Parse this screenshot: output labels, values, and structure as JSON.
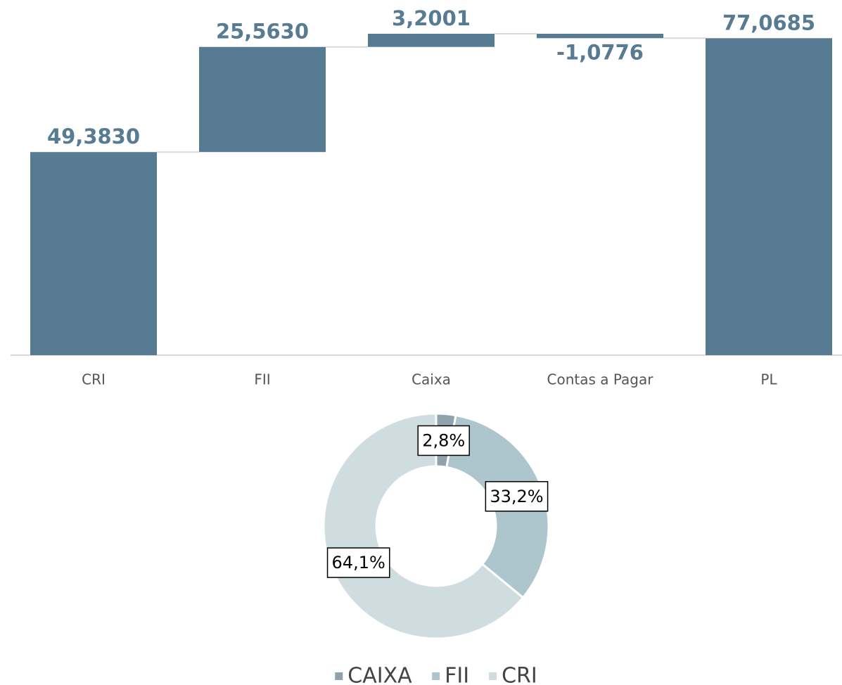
{
  "chart_data": [
    {
      "type": "waterfall",
      "categories": [
        "CRI",
        "FII",
        "Caixa",
        "Contas a Pagar",
        "PL"
      ],
      "values": [
        49.383,
        25.563,
        3.2001,
        -1.0776,
        77.0685
      ],
      "value_labels": [
        "49,3830",
        "25,5630",
        "3,2001",
        "-1,0776",
        "77,0685"
      ],
      "color": "#567b93"
    },
    {
      "type": "donut",
      "categories": [
        "CAIXA",
        "FII",
        "CRI"
      ],
      "values": [
        2.8,
        33.2,
        64.1
      ],
      "value_labels": [
        "2,8%",
        "33,2%",
        "64,1%"
      ],
      "colors": [
        "#8fa3ac",
        "#adc6cd",
        "#cfdde1"
      ],
      "legend": "bottom"
    }
  ]
}
